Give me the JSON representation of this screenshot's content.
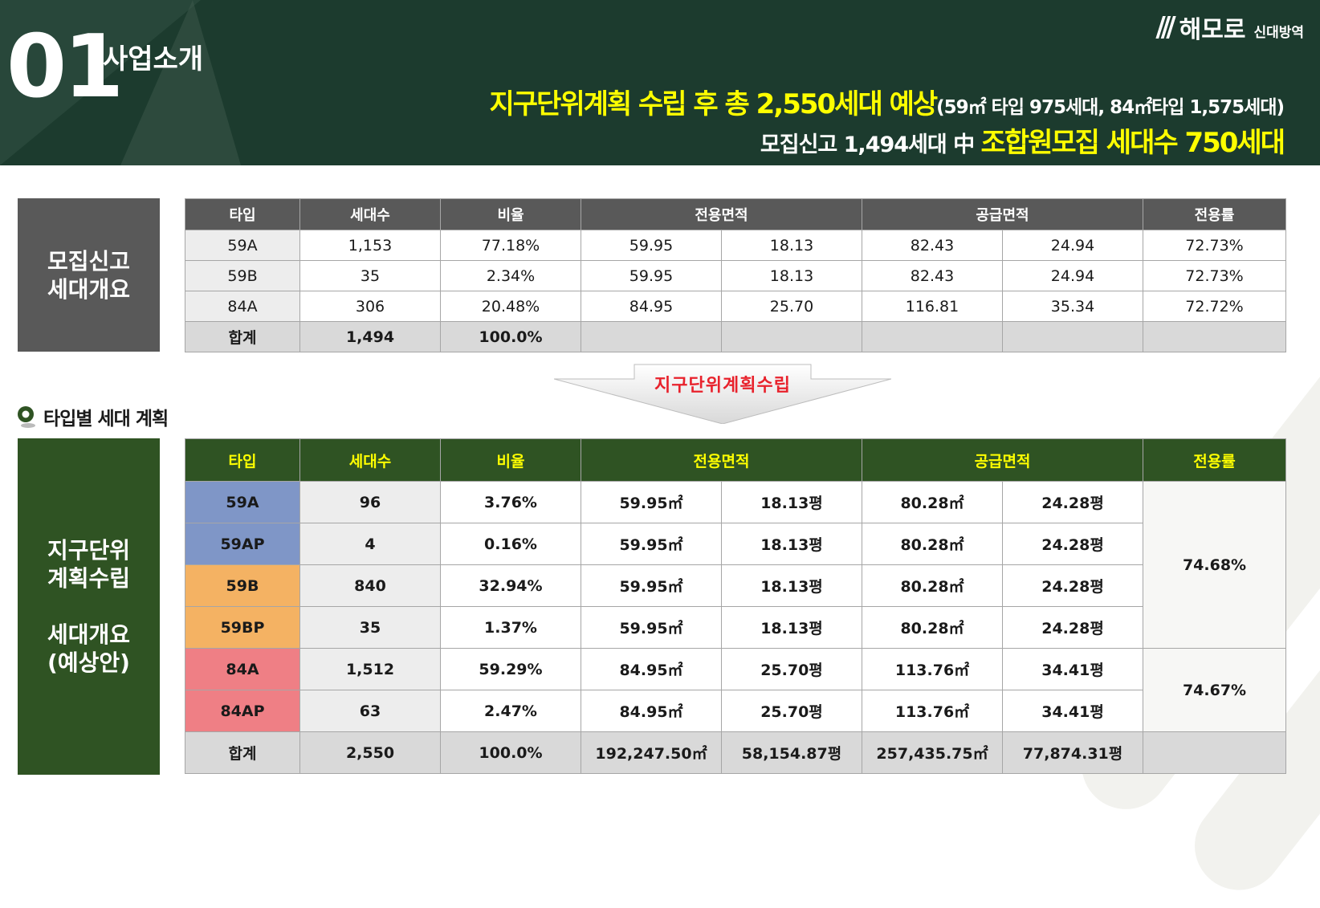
{
  "header": {
    "section_number": "01",
    "section_title": "사업소개",
    "logo_name": "해모로",
    "logo_sub": "신대방역",
    "headline1_main": "지구단위계획 수립 후 총 2,550세대 예상",
    "headline1_detail": "(59㎡ 타입  975세대, 84㎡타입 1,575세대)",
    "headline2_prefix": "모집신고 1,494세대 中 ",
    "headline2_highlight": "조합원모집 세대수 750세대"
  },
  "recruit": {
    "side_label_line1": "모집신고",
    "side_label_line2": "세대개요",
    "headers": [
      "타입",
      "세대수",
      "비율",
      "전용면적",
      "공급면적",
      "전용률"
    ],
    "rows": [
      [
        "59A",
        "1,153",
        "77.18%",
        "59.95",
        "18.13",
        "82.43",
        "24.94",
        "72.73%"
      ],
      [
        "59B",
        "35",
        "2.34%",
        "59.95",
        "18.13",
        "82.43",
        "24.94",
        "72.73%"
      ],
      [
        "84A",
        "306",
        "20.48%",
        "84.95",
        "25.70",
        "116.81",
        "35.34",
        "72.72%"
      ]
    ],
    "total": [
      "합계",
      "1,494",
      "100.0%"
    ]
  },
  "transition_label": "지구단위계획수립",
  "section2_title": "타입별 세대 계획",
  "plan": {
    "side_label_line1": "지구단위",
    "side_label_line2": "계획수립",
    "side_label_line3": "세대개요",
    "side_label_line4": "(예상안)",
    "headers": [
      "타입",
      "세대수",
      "비율",
      "전용면적",
      "공급면적",
      "전용률"
    ],
    "rows": [
      [
        "59AP",
        "4",
        "0.16%",
        "59.95㎡",
        "18.13평",
        "80.28㎡",
        "24.28평"
      ],
      [
        "59B",
        "840",
        "32.94%",
        "59.95㎡",
        "18.13평",
        "80.28㎡",
        "24.28평"
      ],
      [
        "59BP",
        "35",
        "1.37%",
        "59.95㎡",
        "18.13평",
        "80.28㎡",
        "24.28평"
      ],
      [
        "84A",
        "1,512",
        "59.29%",
        "84.95㎡",
        "25.70평",
        "113.76㎡",
        "34.41평"
      ],
      [
        "84AP",
        "63",
        "2.47%",
        "84.95㎡",
        "25.70평",
        "113.76㎡",
        "34.41평"
      ]
    ],
    "first_row": [
      "59A",
      "96",
      "3.76%",
      "59.95㎡",
      "18.13평",
      "80.28㎡",
      "24.28평"
    ],
    "eff_59": "74.68%",
    "eff_84": "74.67%",
    "total": [
      "합계",
      "2,550",
      "100.0%",
      "192,247.50㎡",
      "58,154.87평",
      "257,435.75㎡",
      "77,874.31평"
    ]
  },
  "colors": {
    "header_bg": "#1c3b2e",
    "highlight": "#ffff00",
    "plan_green": "#2f5323",
    "type_59A": "#7f96c7",
    "type_59B": "#f4b263",
    "type_84A": "#ef7f85",
    "label_red": "#e8222c"
  }
}
